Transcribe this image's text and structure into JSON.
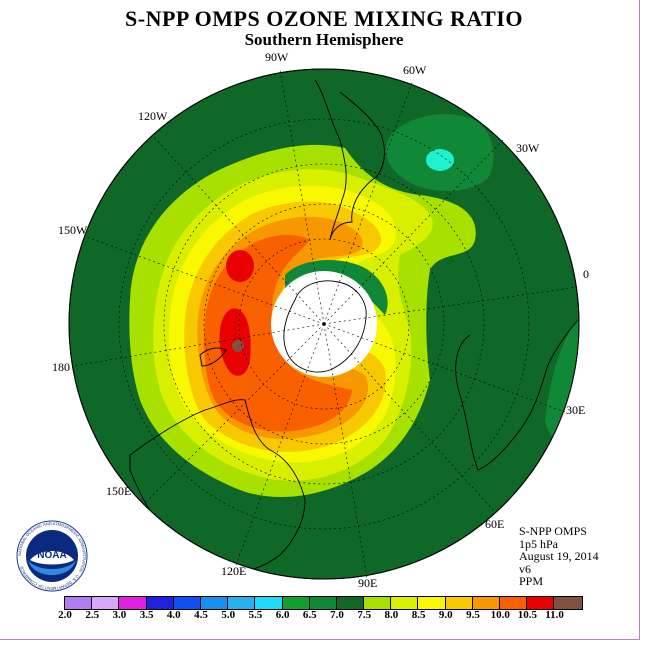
{
  "title": "S-NPP OMPS OZONE MIXING RATIO",
  "subtitle": "Southern Hemisphere",
  "longitude_labels": {
    "lon_90w": "90W",
    "lon_60w": "60W",
    "lon_30w": "30W",
    "lon_0": "0",
    "lon_30e": "30E",
    "lon_60e": "60E",
    "lon_90e": "90E",
    "lon_120e": "120E",
    "lon_150e": "150E",
    "lon_180": "180",
    "lon_150w": "150W",
    "lon_120w": "120W"
  },
  "info": {
    "instrument": "S-NPP OMPS",
    "level": "1p5 hPa",
    "date": "August 19, 2014",
    "version": "v6",
    "units": "PPM"
  },
  "logo": {
    "text": "NOAA",
    "ring_text": "NATIONAL OCEANIC AND ATMOSPHERIC ADMINISTRATION · U.S. DEPARTMENT OF COMMERCE"
  },
  "colorbar": {
    "ticks": [
      "2.0",
      "2.5",
      "3.0",
      "3.5",
      "4.0",
      "4.5",
      "5.0",
      "5.5",
      "6.0",
      "6.5",
      "7.0",
      "7.5",
      "8.0",
      "8.5",
      "9.0",
      "9.5",
      "10.0",
      "10.5",
      "11.0"
    ],
    "colors": [
      "#b07cf0",
      "#d8a8f8",
      "#e020e0",
      "#2020e0",
      "#1050f0",
      "#1890f0",
      "#28b0f0",
      "#20d8f8",
      "#10a030",
      "#108838",
      "#106828",
      "#a8e000",
      "#d8f000",
      "#f8f800",
      "#f8c800",
      "#f89800",
      "#f86000",
      "#e80000",
      "#805040"
    ]
  },
  "map_colors": {
    "background_green": "#106828",
    "green_mid": "#108838",
    "lime": "#a8e000",
    "yellow_green": "#d8f000",
    "yellow": "#f8f800",
    "light_orange": "#f8c800",
    "orange": "#f89800",
    "dark_orange": "#f86000",
    "red": "#e80000",
    "cyan": "#20f0d0",
    "brown": "#805040"
  }
}
